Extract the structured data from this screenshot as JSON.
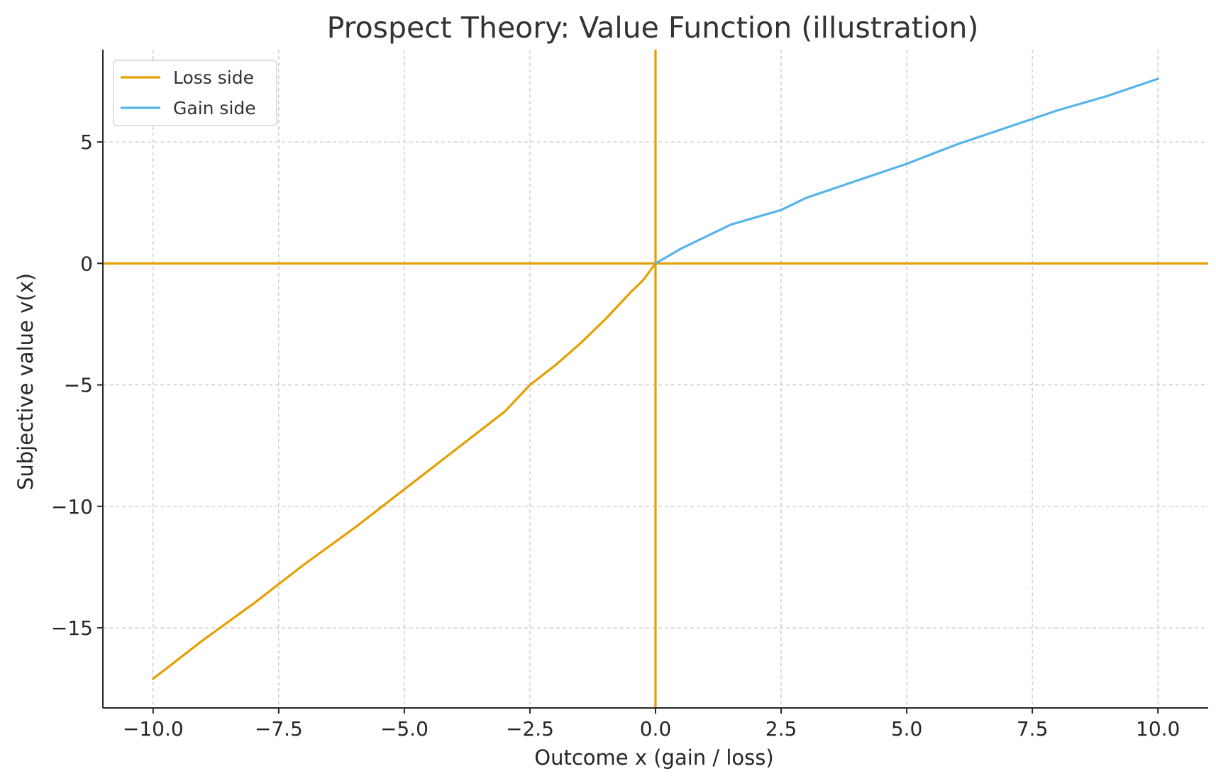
{
  "chart_data": {
    "type": "line",
    "title": "Prospect Theory: Value Function (illustration)",
    "xlabel": "Outcome x (gain / loss)",
    "ylabel": "Subjective value v(x)",
    "xlim": [
      -11,
      11
    ],
    "ylim": [
      -18.3,
      8.8
    ],
    "xticks": [
      -10,
      -7.5,
      -5,
      -2.5,
      0,
      2.5,
      5,
      7.5,
      10
    ],
    "xtick_labels": [
      "−10.0",
      "−7.5",
      "−5.0",
      "−2.5",
      "0.0",
      "2.5",
      "5.0",
      "7.5",
      "10.0"
    ],
    "yticks": [
      -15,
      -10,
      -5,
      0,
      5
    ],
    "ytick_labels": [
      "−15",
      "−10",
      "−5",
      "0",
      "5"
    ],
    "grid": true,
    "legend_position": "top-left",
    "reference_lines": {
      "horizontal_y": 0,
      "vertical_x": 0,
      "color": "#E69F00"
    },
    "series": [
      {
        "name": "Loss side",
        "color": "#E69F00",
        "x": [
          -10,
          -9,
          -8,
          -7,
          -6,
          -5,
          -4,
          -3,
          -2.5,
          -2,
          -1.5,
          -1,
          -0.5,
          -0.25,
          0
        ],
        "y": [
          -17.1,
          -15.5,
          -14.0,
          -12.4,
          -10.9,
          -9.3,
          -7.7,
          -6.1,
          -5.0,
          -4.2,
          -3.3,
          -2.3,
          -1.2,
          -0.7,
          0
        ]
      },
      {
        "name": "Gain side",
        "color": "#56B4E9",
        "x": [
          0,
          0.25,
          0.5,
          1,
          1.5,
          2,
          2.5,
          3,
          4,
          5,
          6,
          7,
          8,
          9,
          10
        ],
        "y": [
          0,
          0.3,
          0.6,
          1.1,
          1.6,
          1.9,
          2.2,
          2.7,
          3.4,
          4.1,
          4.9,
          5.6,
          6.3,
          6.9,
          7.6
        ]
      }
    ]
  }
}
